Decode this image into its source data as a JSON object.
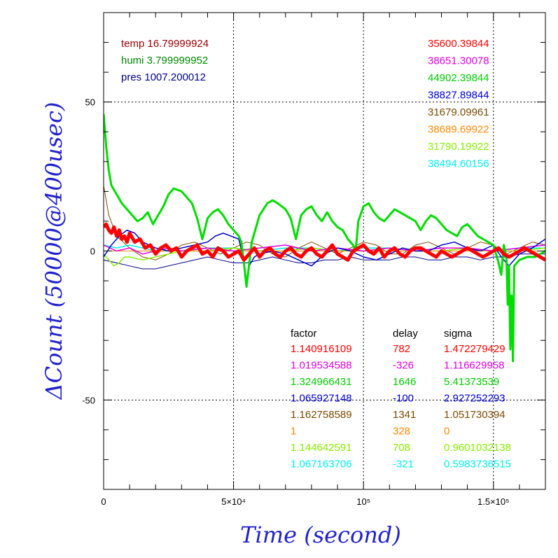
{
  "chart_data": {
    "type": "line",
    "title": "",
    "xlabel": "Time (second)",
    "ylabel": "ΔCount (50000@400usec)",
    "xlim": [
      0,
      170000
    ],
    "ylim": [
      -80,
      80
    ],
    "x_ticks": [
      {
        "value": 0,
        "label": "0"
      },
      {
        "value": 50000,
        "label": "5×10⁴"
      },
      {
        "value": 100000,
        "label": "10⁵"
      },
      {
        "value": 150000,
        "label": "1.5×10⁵"
      }
    ],
    "y_ticks": [
      {
        "value": 50,
        "label": "50"
      },
      {
        "value": 0,
        "label": "0"
      },
      {
        "value": -50,
        "label": "-50"
      }
    ],
    "grid": true,
    "env_labels": [
      {
        "text": "temp 16.79999924",
        "color": "#990000"
      },
      {
        "text": "humi 3.799999952",
        "color": "#008800"
      },
      {
        "text": "pres 1007.200012",
        "color": "#000088"
      }
    ],
    "count_labels": [
      {
        "text": "35600.39844",
        "color": "#ff0000"
      },
      {
        "text": "38651.30078",
        "color": "#dd00dd"
      },
      {
        "text": "44902.39844",
        "color": "#00cc00"
      },
      {
        "text": "38827.89844",
        "color": "#0000cc"
      },
      {
        "text": "31679.09961",
        "color": "#7a4a00"
      },
      {
        "text": "38689.69922",
        "color": "#ff8800"
      },
      {
        "text": "31790.19922",
        "color": "#88ee00"
      },
      {
        "text": "38494.60156",
        "color": "#00eeee"
      }
    ],
    "table_headers": [
      "factor",
      "delay",
      "sigma"
    ],
    "table_rows": [
      {
        "factor": "1.140916109",
        "delay": "782",
        "sigma": "1.472279429",
        "color": "#ff0000"
      },
      {
        "factor": "1.019534588",
        "delay": "-326",
        "sigma": "1.116629958",
        "color": "#dd00dd"
      },
      {
        "factor": "1.324966431",
        "delay": "1646",
        "sigma": "5.41373539",
        "color": "#00cc00"
      },
      {
        "factor": "1.065927148",
        "delay": "-100",
        "sigma": "2.927252293",
        "color": "#0000cc"
      },
      {
        "factor": "1.162758589",
        "delay": "1341",
        "sigma": "1.051730394",
        "color": "#7a4a00"
      },
      {
        "factor": "1",
        "delay": "328",
        "sigma": "0",
        "color": "#ff8800"
      },
      {
        "factor": "1.144642591",
        "delay": "708",
        "sigma": "0.9601032138",
        "color": "#88ee00"
      },
      {
        "factor": "1.067163706",
        "delay": "-321",
        "sigma": "0.5983736515",
        "color": "#00eeee"
      }
    ],
    "series": [
      {
        "color": "#7a4a00",
        "width": 1,
        "x": [
          0,
          2000,
          5000,
          10000,
          15000,
          20000,
          25000,
          30000,
          35000,
          40000,
          45000,
          50000,
          55000,
          60000,
          65000,
          70000,
          75000,
          80000,
          85000,
          90000,
          95000,
          100000,
          105000,
          110000,
          115000,
          120000,
          125000,
          130000,
          135000,
          140000,
          145000,
          150000,
          155000,
          160000,
          165000,
          170000
        ],
        "y": [
          22,
          12,
          5,
          1,
          -2,
          -3,
          -1,
          2,
          3,
          1,
          -1,
          1,
          3,
          2,
          -1,
          -2,
          1,
          3,
          1,
          -1,
          1,
          3,
          2,
          -1,
          -1,
          2,
          3,
          1,
          -1,
          1,
          3,
          2,
          -1,
          1,
          3,
          2
        ]
      },
      {
        "color": "#000088",
        "width": 1,
        "x": [
          0,
          5000,
          10000,
          15000,
          20000,
          25000,
          30000,
          35000,
          40000,
          45000,
          50000,
          55000,
          60000,
          65000,
          70000,
          75000,
          80000,
          85000,
          90000,
          95000,
          100000,
          105000,
          110000,
          115000,
          120000,
          125000,
          130000,
          135000,
          140000,
          145000,
          150000,
          155000,
          160000,
          165000,
          170000
        ],
        "y": [
          -3,
          -4,
          -5,
          -6,
          -6,
          -5,
          -4,
          -3,
          -2,
          -3,
          -4,
          -4,
          -3,
          -2,
          -3,
          -4,
          -4,
          -3,
          -3,
          -2,
          -3,
          -3,
          -3,
          -2,
          -2,
          -3,
          -3,
          -2,
          -2,
          -3,
          -2,
          -2,
          -1,
          -1,
          -1
        ]
      },
      {
        "color": "#00eeee",
        "width": 1.5,
        "x": [
          0,
          5000,
          10000,
          15000,
          20000,
          30000,
          40000,
          50000,
          60000,
          70000,
          80000,
          90000,
          100000,
          110000,
          120000,
          130000,
          140000,
          150000,
          160000,
          170000
        ],
        "y": [
          2,
          1,
          2,
          1,
          0,
          0,
          1,
          1,
          0,
          1,
          1,
          0,
          1,
          1,
          0,
          1,
          1,
          0,
          1,
          1
        ]
      },
      {
        "color": "#88ee00",
        "width": 1.5,
        "x": [
          0,
          2000,
          4000,
          6000,
          8000,
          10000,
          15000,
          20000,
          25000,
          30000,
          40000,
          50000,
          60000,
          70000,
          80000,
          90000,
          100000,
          110000,
          120000,
          130000,
          140000,
          150000,
          160000,
          170000
        ],
        "y": [
          -1,
          -3,
          -5,
          -4,
          -2,
          -2,
          -3,
          -2,
          -1,
          0,
          0,
          1,
          0,
          0,
          1,
          0,
          0,
          1,
          0,
          0,
          1,
          0,
          0,
          1
        ]
      },
      {
        "color": "#ff8800",
        "width": 1,
        "x": [
          0,
          10000,
          20000,
          30000,
          40000,
          50000,
          60000,
          70000,
          80000,
          90000,
          100000,
          110000,
          120000,
          130000,
          140000,
          150000,
          160000,
          170000
        ],
        "y": [
          0,
          0,
          0,
          0,
          0,
          0,
          0,
          0,
          0,
          0,
          0,
          0,
          0,
          0,
          0,
          0,
          0,
          0
        ]
      },
      {
        "color": "#dd00dd",
        "width": 1.5,
        "x": [
          0,
          5000,
          10000,
          15000,
          20000,
          25000,
          30000,
          40000,
          50000,
          60000,
          70000,
          80000,
          90000,
          100000,
          110000,
          120000,
          130000,
          140000,
          150000,
          160000,
          170000
        ],
        "y": [
          2,
          0,
          1,
          -1,
          0,
          1,
          0,
          1,
          0,
          1,
          2,
          0,
          1,
          0,
          1,
          0,
          1,
          1,
          0,
          1,
          2
        ]
      },
      {
        "color": "#0000cc",
        "width": 1.5,
        "x": [
          0,
          3000,
          6000,
          9000,
          12000,
          15000,
          20000,
          25000,
          30000,
          35000,
          40000,
          43000,
          46000,
          49000,
          52000,
          54000,
          55000,
          56000,
          58000,
          60000,
          65000,
          70000,
          75000,
          80000,
          85000,
          90000,
          95000,
          100000,
          105000,
          110000,
          115000,
          120000,
          125000,
          130000,
          135000,
          140000,
          145000,
          150000,
          153000,
          156000,
          160000,
          165000,
          170000
        ],
        "y": [
          -2,
          2,
          5,
          7,
          6,
          3,
          1,
          0,
          1,
          2,
          3,
          5,
          6,
          5,
          4,
          -3,
          -10,
          -5,
          -2,
          -1,
          0,
          -1,
          -3,
          -5,
          -1,
          1,
          0,
          -2,
          -3,
          -1,
          1,
          0,
          0,
          2,
          3,
          1,
          0,
          2,
          -2,
          -5,
          -1,
          1,
          4
        ]
      },
      {
        "color": "#00dd00",
        "width": 3,
        "x": [
          0,
          1000,
          2000,
          3000,
          5000,
          7000,
          9000,
          11000,
          13000,
          15000,
          17000,
          19000,
          21000,
          23000,
          25000,
          27000,
          30000,
          32000,
          34000,
          36000,
          38000,
          40000,
          42000,
          44000,
          46000,
          48000,
          50000,
          52000,
          53000,
          54000,
          55000,
          57000,
          60000,
          63000,
          65000,
          67000,
          70000,
          72000,
          74000,
          76000,
          78000,
          80000,
          82000,
          84000,
          86000,
          88000,
          90000,
          92000,
          94000,
          96000,
          97000,
          98000,
          100000,
          102000,
          104000,
          106000,
          108000,
          110000,
          112000,
          114000,
          116000,
          118000,
          120000,
          122000,
          124000,
          126000,
          128000,
          130000,
          132000,
          134000,
          136000,
          138000,
          140000,
          142000,
          144000,
          146000,
          148000,
          150000,
          151000,
          152000,
          153000,
          154000,
          155000,
          155500,
          156000,
          156500,
          157000,
          157500,
          158000,
          160000,
          163000,
          166000,
          170000
        ],
        "y": [
          46,
          35,
          27,
          22,
          19,
          16,
          14,
          12,
          10,
          11,
          13,
          9,
          12,
          15,
          19,
          21,
          20,
          18,
          16,
          11,
          4,
          11,
          13,
          14,
          12,
          9,
          7,
          5,
          3,
          -4,
          -12,
          3,
          12,
          16,
          17,
          16,
          14,
          11,
          4,
          12,
          14,
          15,
          12,
          10,
          13,
          10,
          8,
          7,
          4,
          2,
          0,
          10,
          15,
          16,
          13,
          11,
          10,
          12,
          14,
          13,
          12,
          11,
          10,
          7,
          10,
          12,
          11,
          9,
          7,
          6,
          5,
          8,
          9,
          7,
          5,
          4,
          3,
          2,
          -1,
          -4,
          -8,
          2,
          -2,
          -18,
          -5,
          -33,
          -15,
          -37,
          -5,
          -3,
          -2,
          -2,
          0
        ]
      },
      {
        "color": "#ff0000",
        "width": 5,
        "x": [
          0,
          1000,
          2000,
          3000,
          4000,
          5000,
          6000,
          7000,
          8000,
          9000,
          10000,
          12000,
          14000,
          16000,
          18000,
          20000,
          22000,
          24000,
          26000,
          28000,
          30000,
          32000,
          34000,
          36000,
          38000,
          40000,
          42000,
          44000,
          46000,
          48000,
          50000,
          52000,
          54000,
          56000,
          58000,
          60000,
          62000,
          64000,
          66000,
          68000,
          70000,
          72000,
          74000,
          76000,
          78000,
          80000,
          82000,
          84000,
          86000,
          88000,
          90000,
          92000,
          94000,
          96000,
          98000,
          100000,
          102000,
          104000,
          106000,
          108000,
          110000,
          112000,
          114000,
          116000,
          118000,
          120000,
          122000,
          124000,
          126000,
          128000,
          130000,
          132000,
          134000,
          136000,
          138000,
          140000,
          142000,
          144000,
          146000,
          148000,
          150000,
          152000,
          154000,
          156000,
          158000,
          160000,
          162000,
          164000,
          166000,
          168000,
          170000
        ],
        "y": [
          8,
          9,
          7,
          6,
          8,
          5,
          7,
          4,
          5,
          3,
          6,
          3,
          4,
          1,
          2,
          -1,
          1,
          2,
          0,
          1,
          -2,
          0,
          1,
          2,
          -1,
          0,
          -2,
          1,
          0,
          -2,
          -1,
          0,
          -3,
          -1,
          1,
          -2,
          0,
          1,
          -1,
          -2,
          0,
          1,
          -1,
          -2,
          0,
          1,
          -1,
          -2,
          0,
          2,
          -1,
          -2,
          -3,
          0,
          1,
          2,
          0,
          -1,
          1,
          -2,
          0,
          1,
          -1,
          -2,
          0,
          1,
          1,
          0,
          -1,
          -2,
          0,
          -1,
          -2,
          -1,
          0,
          1,
          0,
          -1,
          -2,
          -1,
          0,
          1,
          -1,
          -2,
          -1,
          0,
          1,
          0,
          -1,
          -2,
          -3
        ]
      }
    ]
  }
}
